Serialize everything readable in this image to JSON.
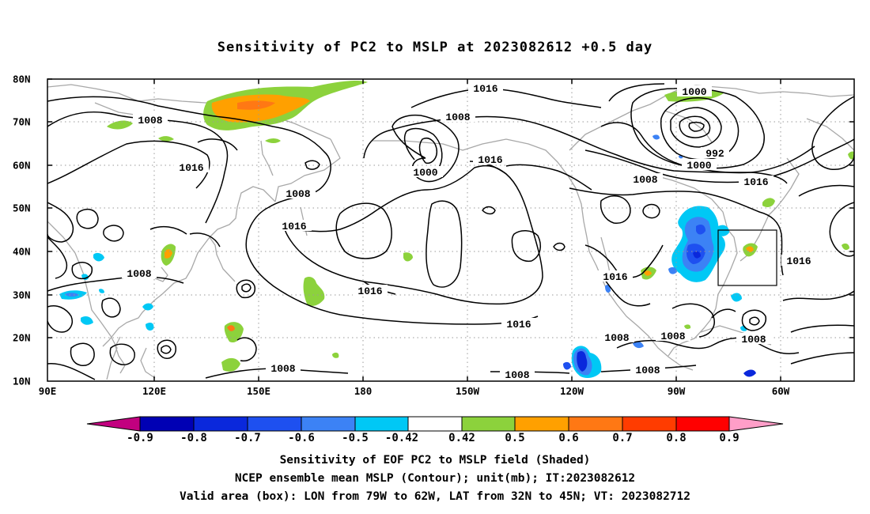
{
  "title": "Sensitivity of PC2 to MSLP at 2023082612 +0.5 day",
  "map": {
    "lat_labels": [
      "80N",
      "70N",
      "60N",
      "50N",
      "40N",
      "30N",
      "20N",
      "10N"
    ],
    "lon_labels": [
      "90E",
      "120E",
      "150E",
      "180",
      "150W",
      "120W",
      "90W",
      "60W"
    ],
    "lon_range": [
      90,
      322
    ],
    "lat_range": [
      10,
      80
    ],
    "valid_box": {
      "lon_west": -79,
      "lon_east": -62,
      "lat_south": 32,
      "lat_north": 45
    },
    "contour_labels": [
      "1016",
      "1008",
      "1016",
      "1008",
      "1016",
      "1008",
      "1016",
      "1016",
      "1008",
      "1008",
      "1000",
      "1016",
      "1016",
      "1000",
      "992",
      "1000",
      "1008",
      "1016",
      "1016",
      "1016",
      "1008",
      "1008",
      "1008",
      "1008",
      "1008"
    ],
    "coastline_color": "#a8a8a8",
    "contour_color": "#000000"
  },
  "colorbar": {
    "labels": [
      "-0.9",
      "-0.8",
      "-0.7",
      "-0.6",
      "-0.5",
      "-0.42",
      "0.42",
      "0.5",
      "0.6",
      "0.7",
      "0.8",
      "0.9"
    ],
    "colors": [
      "#c2007f",
      "#0000b4",
      "#0a28dc",
      "#1e50f0",
      "#3c82f5",
      "#00c8f5",
      "#ffffff",
      "#8cd23c",
      "#ffa000",
      "#ff7814",
      "#ff3c00",
      "#ff0000",
      "#ff9ec8"
    ]
  },
  "captions": {
    "line1": "Sensitivity of EOF PC2 to MSLP field (Shaded)",
    "line2": "NCEP ensemble mean MSLP (Contour); unit(mb); IT:2023082612",
    "line3": "Valid area (box): LON from 79W to 62W, LAT from 32N to 45N; VT: 2023082712"
  }
}
